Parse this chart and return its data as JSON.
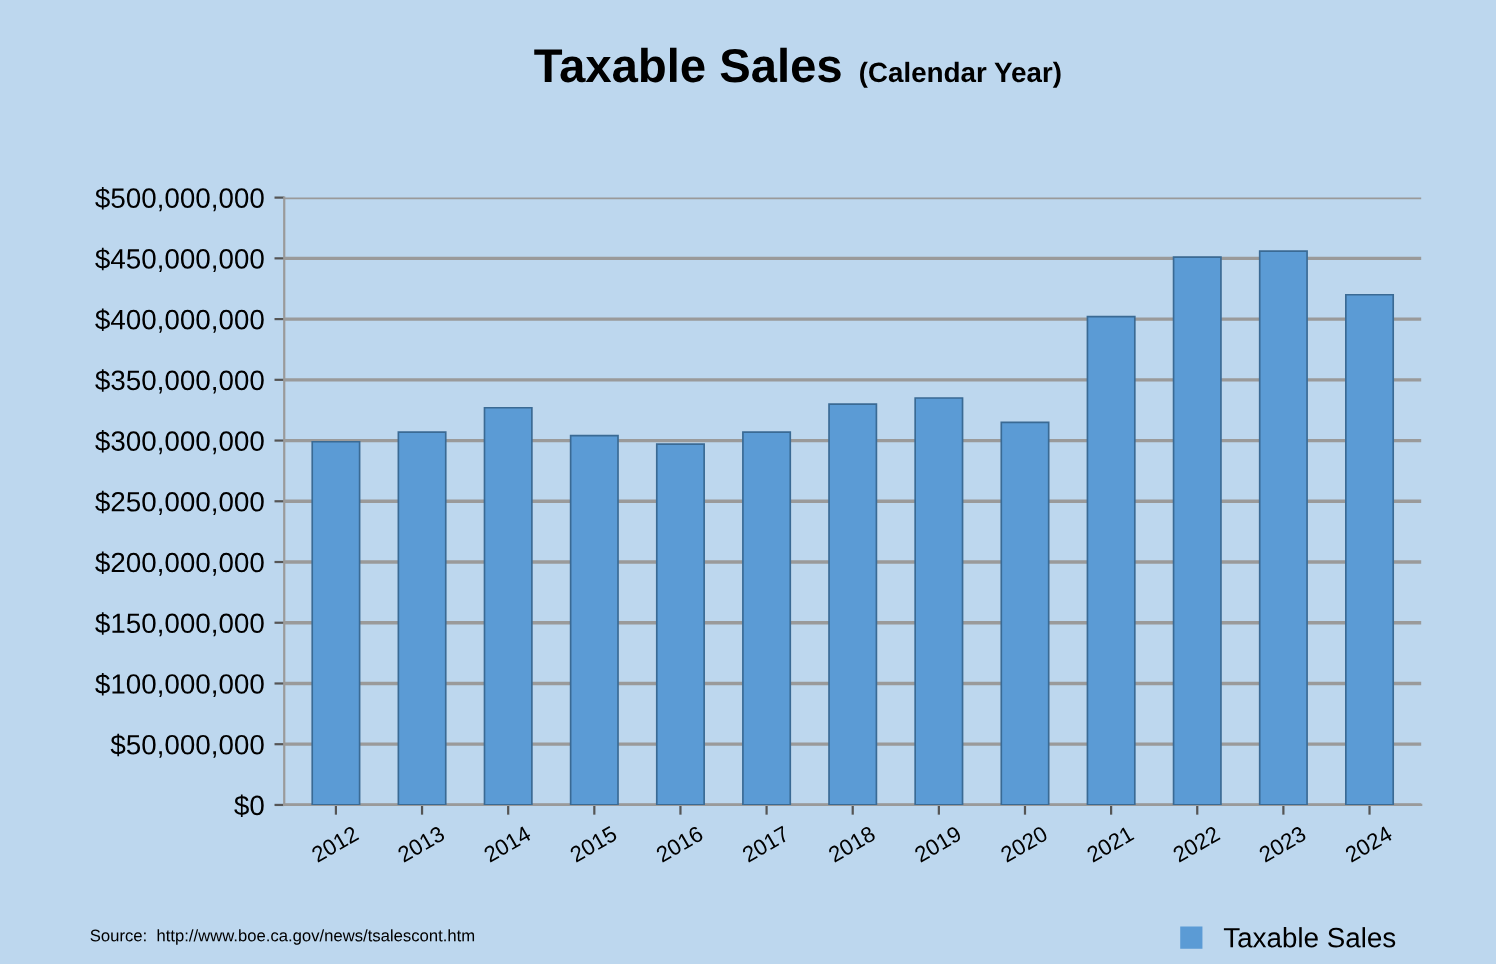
{
  "chart_data": {
    "type": "bar",
    "title": "Taxable Sales",
    "subtitle": "(Calendar Year)",
    "categories": [
      "2012",
      "2013",
      "2014",
      "2015",
      "2016",
      "2017",
      "2018",
      "2019",
      "2020",
      "2021",
      "2022",
      "2023",
      "2024"
    ],
    "series": [
      {
        "name": "Taxable Sales",
        "color": "#5b9bd5",
        "values": [
          299000000,
          307000000,
          327000000,
          304000000,
          297000000,
          307000000,
          330000000,
          335000000,
          315000000,
          402000000,
          451000000,
          456000000,
          420000000
        ]
      }
    ],
    "ylim": [
      0,
      500000000
    ],
    "yticks": [
      {
        "value": 0,
        "label": "$0"
      },
      {
        "value": 50000000,
        "label": "$50,000,000"
      },
      {
        "value": 100000000,
        "label": "$100,000,000"
      },
      {
        "value": 150000000,
        "label": "$150,000,000"
      },
      {
        "value": 200000000,
        "label": "$200,000,000"
      },
      {
        "value": 250000000,
        "label": "$250,000,000"
      },
      {
        "value": 300000000,
        "label": "$300,000,000"
      },
      {
        "value": 350000000,
        "label": "$350,000,000"
      },
      {
        "value": 400000000,
        "label": "$400,000,000"
      },
      {
        "value": 450000000,
        "label": "$450,000,000"
      },
      {
        "value": 500000000,
        "label": "$500,000,000"
      }
    ],
    "grid": "y",
    "legend": "bottom right",
    "annotations": [
      "Source:  http://www.boe.ca.gov/news/tsalescont.htm"
    ]
  }
}
